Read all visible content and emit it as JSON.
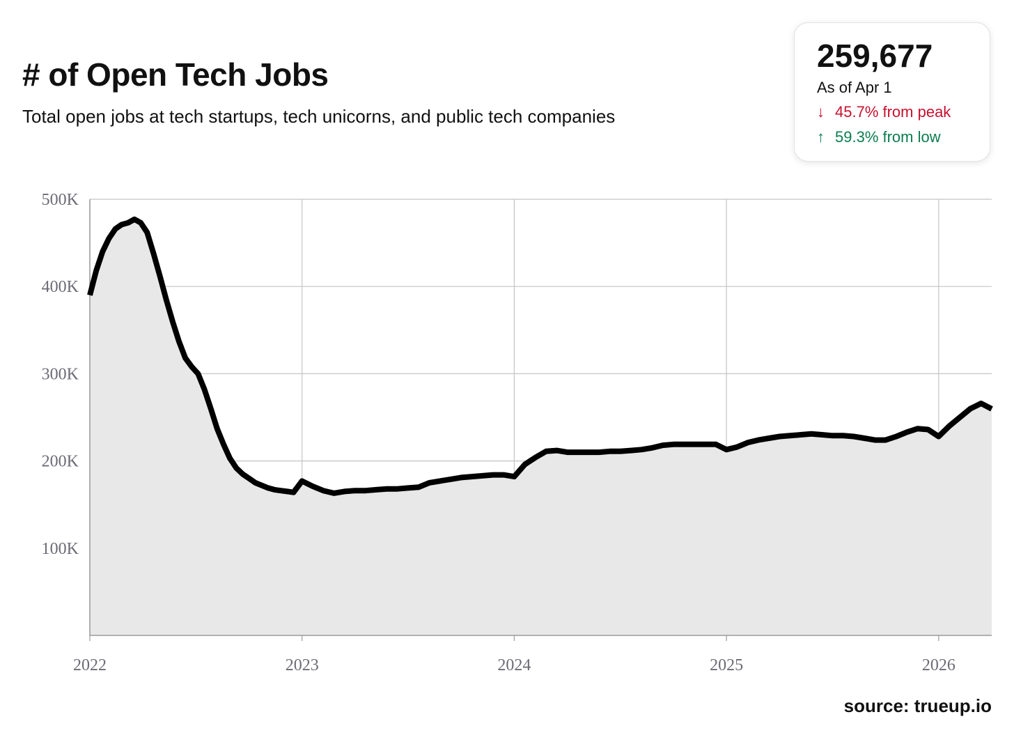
{
  "header": {
    "title": "# of Open Tech Jobs",
    "subtitle": "Total open jobs at tech startups, tech unicorns, and public tech companies"
  },
  "stat_card": {
    "value": "259,677",
    "as_of": "As of Apr 1",
    "from_peak": {
      "arrow": "↓",
      "text": "45.7% from peak",
      "color": "#c8102e"
    },
    "from_low": {
      "arrow": "↑",
      "text": "59.3% from low",
      "color": "#0a7d4f"
    }
  },
  "source": "source: trueup.io",
  "chart_data": {
    "type": "area",
    "title": "# of Open Tech Jobs",
    "xlabel": "",
    "ylabel": "",
    "x_unit": "year",
    "xlim": [
      2022,
      2026.25
    ],
    "ylim": [
      0,
      500000
    ],
    "y_ticks": [
      100000,
      200000,
      300000,
      400000,
      500000
    ],
    "y_tick_labels": [
      "100K",
      "200K",
      "300K",
      "400K",
      "500K"
    ],
    "x_ticks": [
      2022,
      2023,
      2024,
      2025,
      2026
    ],
    "x_tick_labels": [
      "2022",
      "2023",
      "2024",
      "2025",
      "2026"
    ],
    "grid": true,
    "line_color": "#000000",
    "fill_color": "#e8e8e8",
    "series": [
      {
        "name": "Open tech jobs",
        "x": [
          2022.0,
          2022.03,
          2022.06,
          2022.09,
          2022.12,
          2022.15,
          2022.18,
          2022.21,
          2022.24,
          2022.27,
          2022.3,
          2022.33,
          2022.36,
          2022.39,
          2022.42,
          2022.45,
          2022.48,
          2022.51,
          2022.54,
          2022.57,
          2022.6,
          2022.63,
          2022.66,
          2022.69,
          2022.72,
          2022.75,
          2022.78,
          2022.81,
          2022.84,
          2022.87,
          2022.9,
          2022.93,
          2022.96,
          2023.0,
          2023.05,
          2023.1,
          2023.15,
          2023.2,
          2023.25,
          2023.3,
          2023.35,
          2023.4,
          2023.45,
          2023.5,
          2023.55,
          2023.6,
          2023.65,
          2023.7,
          2023.75,
          2023.8,
          2023.85,
          2023.9,
          2023.95,
          2024.0,
          2024.05,
          2024.1,
          2024.15,
          2024.2,
          2024.25,
          2024.3,
          2024.35,
          2024.4,
          2024.45,
          2024.5,
          2024.55,
          2024.6,
          2024.65,
          2024.7,
          2024.75,
          2024.8,
          2024.85,
          2024.9,
          2024.95,
          2025.0,
          2025.05,
          2025.1,
          2025.15,
          2025.2,
          2025.25,
          2025.3,
          2025.35,
          2025.4,
          2025.45,
          2025.5,
          2025.55,
          2025.6,
          2025.65,
          2025.7,
          2025.75,
          2025.8,
          2025.85,
          2025.9,
          2025.95,
          2026.0,
          2026.05,
          2026.1,
          2026.15,
          2026.2,
          2026.25
        ],
        "values": [
          390000,
          418000,
          440000,
          455000,
          466000,
          471000,
          473000,
          477000,
          473000,
          462000,
          438000,
          412000,
          385000,
          360000,
          337000,
          318000,
          308000,
          300000,
          282000,
          260000,
          237000,
          219000,
          203000,
          192000,
          185000,
          180000,
          175000,
          172000,
          169000,
          167000,
          166000,
          165000,
          164000,
          177000,
          171000,
          166000,
          163000,
          165000,
          166000,
          166000,
          167000,
          168000,
          168000,
          169000,
          170000,
          175000,
          177000,
          179000,
          181000,
          182000,
          183000,
          184000,
          184000,
          182000,
          196000,
          204000,
          211000,
          212000,
          210000,
          210000,
          210000,
          210000,
          211000,
          211000,
          212000,
          213000,
          215000,
          218000,
          219000,
          219000,
          219000,
          219000,
          219000,
          213000,
          216000,
          221000,
          224000,
          226000,
          228000,
          229000,
          230000,
          231000,
          230000,
          229000,
          229000,
          228000,
          226000,
          224000,
          224000,
          228000,
          233000,
          237000,
          236000,
          228000,
          240000,
          250000,
          260000,
          266000,
          259677
        ]
      }
    ]
  }
}
